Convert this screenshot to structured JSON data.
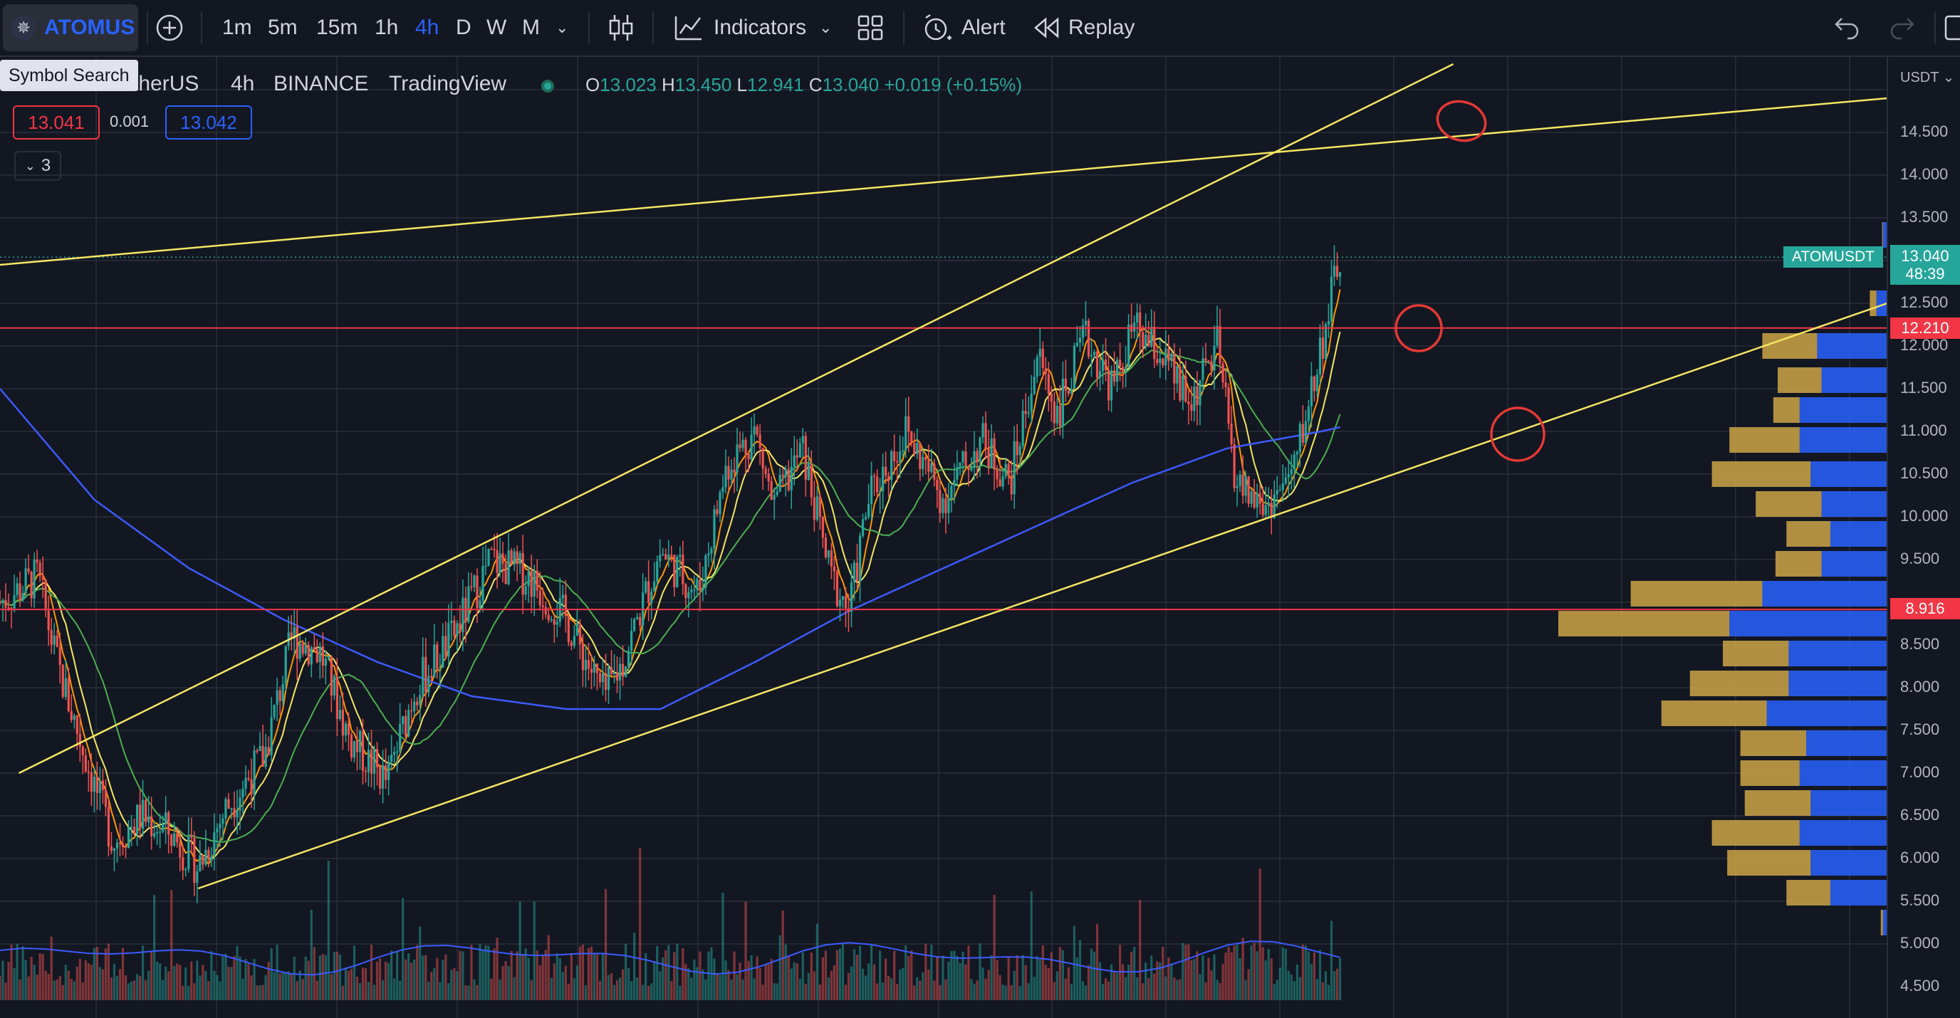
{
  "toolbar": {
    "symbol": "ATOMUS",
    "intervals": [
      "1m",
      "5m",
      "15m",
      "1h",
      "4h",
      "D",
      "W",
      "M"
    ],
    "active_interval": "4h",
    "indicators_label": "Indicators",
    "alert_label": "Alert",
    "replay_label": "Replay"
  },
  "tooltip": {
    "text": "Symbol Search"
  },
  "legend": {
    "title": "therUS",
    "interval": "4h",
    "exchange": "BINANCE",
    "source": "TradingView",
    "o_label": "O",
    "o_value": "13.023",
    "h_label": "H",
    "h_value": "13.450",
    "l_label": "L",
    "l_value": "12.941",
    "c_label": "C",
    "c_value": "13.040",
    "change": "+0.019 (+0.15%)"
  },
  "spread": {
    "bid": "13.041",
    "spread": "0.001",
    "ask": "13.042"
  },
  "indicators_toggle": {
    "count": "3"
  },
  "price_axis": {
    "currency": "USDT",
    "ticks": [
      "14.500",
      "14.000",
      "13.500",
      "12.500",
      "12.000",
      "11.500",
      "11.000",
      "10.500",
      "10.000",
      "9.500",
      "8.500",
      "8.000",
      "7.500",
      "7.000",
      "6.500",
      "6.000",
      "5.500",
      "5.000",
      "4.500"
    ],
    "current_symbol": "ATOMUSDT",
    "current_price": "13.040",
    "countdown": "48:39",
    "level_high": "12.210",
    "level_low": "8.916"
  },
  "colors": {
    "background": "#131722",
    "accent": "#2962ff",
    "up": "#26a69a",
    "down": "#ef5350",
    "trendline": "#f5e663",
    "level": "#f23645",
    "ma_blue": "#3d5afe"
  },
  "chart_data": {
    "type": "candlestick",
    "symbol": "ATOMUSDT",
    "interval": "4h",
    "ylim": [
      4.3,
      15.2
    ],
    "horizontal_levels": [
      12.21,
      8.916
    ],
    "trendlines": [
      {
        "from": [
          0.0,
          12.95
        ],
        "to": [
          1.0,
          14.9
        ]
      },
      {
        "from": [
          0.01,
          7.0
        ],
        "to": [
          0.77,
          15.3
        ]
      },
      {
        "from": [
          0.105,
          5.65
        ],
        "to": [
          1.0,
          12.5
        ]
      }
    ],
    "close_path": [
      [
        0.0,
        9.0
      ],
      [
        0.02,
        9.3
      ],
      [
        0.03,
        8.3
      ],
      [
        0.045,
        7.2
      ],
      [
        0.06,
        6.2
      ],
      [
        0.075,
        6.5
      ],
      [
        0.09,
        6.3
      ],
      [
        0.105,
        5.9
      ],
      [
        0.12,
        6.6
      ],
      [
        0.14,
        7.2
      ],
      [
        0.155,
        8.6
      ],
      [
        0.17,
        8.4
      ],
      [
        0.185,
        7.4
      ],
      [
        0.205,
        6.9
      ],
      [
        0.22,
        8.0
      ],
      [
        0.24,
        8.6
      ],
      [
        0.26,
        9.5
      ],
      [
        0.28,
        9.3
      ],
      [
        0.3,
        8.8
      ],
      [
        0.32,
        7.9
      ],
      [
        0.33,
        8.3
      ],
      [
        0.35,
        9.6
      ],
      [
        0.37,
        9.1
      ],
      [
        0.385,
        10.6
      ],
      [
        0.4,
        11.0
      ],
      [
        0.41,
        10.1
      ],
      [
        0.425,
        10.8
      ],
      [
        0.44,
        9.3
      ],
      [
        0.45,
        8.9
      ],
      [
        0.46,
        10.2
      ],
      [
        0.48,
        11.0
      ],
      [
        0.5,
        10.2
      ],
      [
        0.52,
        10.9
      ],
      [
        0.535,
        10.4
      ],
      [
        0.55,
        11.9
      ],
      [
        0.56,
        11.2
      ],
      [
        0.575,
        12.1
      ],
      [
        0.59,
        11.5
      ],
      [
        0.6,
        12.2
      ],
      [
        0.615,
        11.9
      ],
      [
        0.63,
        11.3
      ],
      [
        0.645,
        12.0
      ],
      [
        0.655,
        10.4
      ],
      [
        0.67,
        10.1
      ],
      [
        0.685,
        10.5
      ],
      [
        0.7,
        12.0
      ],
      [
        0.71,
        13.04
      ]
    ],
    "volume_profile": [
      {
        "price": 13.3,
        "up": 0.004,
        "down": 0.02
      },
      {
        "price": 12.5,
        "up": 0.03,
        "down": 0.05
      },
      {
        "price": 12.0,
        "up": 0.25,
        "down": 0.32
      },
      {
        "price": 11.6,
        "up": 0.2,
        "down": 0.3
      },
      {
        "price": 11.25,
        "up": 0.12,
        "down": 0.4
      },
      {
        "price": 10.9,
        "up": 0.32,
        "down": 0.4
      },
      {
        "price": 10.5,
        "up": 0.45,
        "down": 0.35
      },
      {
        "price": 10.15,
        "up": 0.3,
        "down": 0.3
      },
      {
        "price": 9.8,
        "up": 0.2,
        "down": 0.26
      },
      {
        "price": 9.45,
        "up": 0.21,
        "down": 0.3
      },
      {
        "price": 9.1,
        "up": 0.6,
        "down": 0.57
      },
      {
        "price": 8.75,
        "up": 0.78,
        "down": 0.72
      },
      {
        "price": 8.4,
        "up": 0.3,
        "down": 0.45
      },
      {
        "price": 8.05,
        "up": 0.45,
        "down": 0.45
      },
      {
        "price": 7.7,
        "up": 0.48,
        "down": 0.55
      },
      {
        "price": 7.35,
        "up": 0.3,
        "down": 0.37
      },
      {
        "price": 7.0,
        "up": 0.27,
        "down": 0.4
      },
      {
        "price": 6.65,
        "up": 0.3,
        "down": 0.35
      },
      {
        "price": 6.3,
        "up": 0.4,
        "down": 0.4
      },
      {
        "price": 5.95,
        "up": 0.38,
        "down": 0.35
      },
      {
        "price": 5.6,
        "up": 0.2,
        "down": 0.26
      },
      {
        "price": 5.25,
        "up": 0.01,
        "down": 0.02
      }
    ]
  }
}
